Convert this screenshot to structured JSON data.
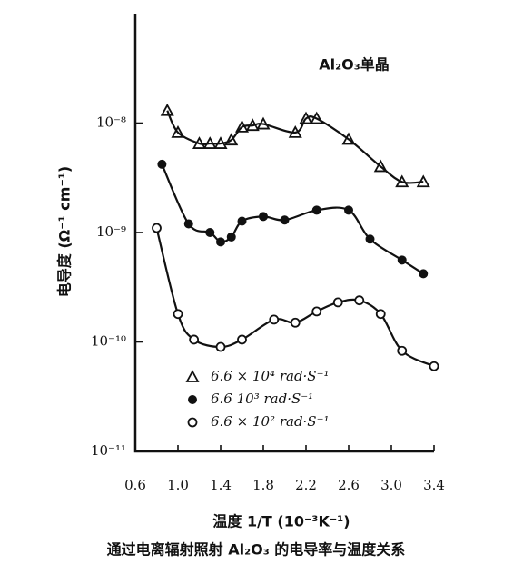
{
  "chart_data": {
    "type": "scatter",
    "annotation": "Al₂O₃单晶",
    "x_label": "温度 1/T (10⁻³K⁻¹)",
    "y_label": "电导度 (Ω⁻¹ cm⁻¹)",
    "caption": "通过电离辐射照射 Al₂O₃ 的电导率与温度关系",
    "log_y": true,
    "xlim": [
      0.6,
      3.4
    ],
    "xticks": [
      {
        "value": 0.6,
        "label": "0.6"
      },
      {
        "value": 1.0,
        "label": "1.0"
      },
      {
        "value": 1.4,
        "label": "1.4"
      },
      {
        "value": 1.8,
        "label": "1.8"
      },
      {
        "value": 2.2,
        "label": "2.2"
      },
      {
        "value": 2.6,
        "label": "2.6"
      },
      {
        "value": 3.0,
        "label": "3.0"
      },
      {
        "value": 3.4,
        "label": "3.4"
      }
    ],
    "ylim": [
      1e-11,
      1e-07
    ],
    "yticks": [
      {
        "value": 1e-11,
        "label": "10⁻¹¹"
      },
      {
        "value": 1e-10,
        "label": "10⁻¹⁰"
      },
      {
        "value": 1e-09,
        "label": "10⁻⁹"
      },
      {
        "value": 1e-08,
        "label": "10⁻⁸"
      }
    ],
    "legend": "lower left",
    "series": [
      {
        "name": "6.6 × 10⁴ rad·S⁻¹",
        "color": "#111111",
        "marker": "triangle",
        "x": [
          0.9,
          1.0,
          1.2,
          1.3,
          1.4,
          1.5,
          1.6,
          1.7,
          1.8,
          2.1,
          2.2,
          2.3,
          2.6,
          2.9,
          3.1,
          3.3
        ],
        "values": [
          1.3e-08,
          8.2e-09,
          6.5e-09,
          6.5e-09,
          6.5e-09,
          7e-09,
          9.2e-09,
          9.5e-09,
          9.8e-09,
          8.2e-09,
          1.1e-08,
          1.1e-08,
          7.1e-09,
          4e-09,
          2.9e-09,
          2.9e-09
        ]
      },
      {
        "name": "6.6    10³ rad·S⁻¹",
        "color": "#111111",
        "marker": "filled-circle",
        "x": [
          0.85,
          1.1,
          1.3,
          1.4,
          1.5,
          1.6,
          1.8,
          2.0,
          2.3,
          2.6,
          2.8,
          3.1,
          3.3
        ],
        "values": [
          4.2e-09,
          1.2e-09,
          1e-09,
          8.2e-10,
          9.1e-10,
          1.27e-09,
          1.4e-09,
          1.3e-09,
          1.6e-09,
          1.6e-09,
          8.7e-10,
          5.6e-10,
          4.2e-10
        ]
      },
      {
        "name": "6.6 × 10² rad·S⁻¹",
        "color": "#111111",
        "marker": "open-circle",
        "x": [
          0.8,
          1.0,
          1.15,
          1.4,
          1.6,
          1.9,
          2.1,
          2.3,
          2.5,
          2.7,
          2.9,
          3.1,
          3.4
        ],
        "values": [
          1.1e-09,
          1.8e-10,
          1.05e-10,
          9e-11,
          1.05e-10,
          1.6e-10,
          1.5e-10,
          1.9e-10,
          2.3e-10,
          2.4e-10,
          1.8e-10,
          8.3e-11,
          6e-11
        ]
      }
    ]
  }
}
